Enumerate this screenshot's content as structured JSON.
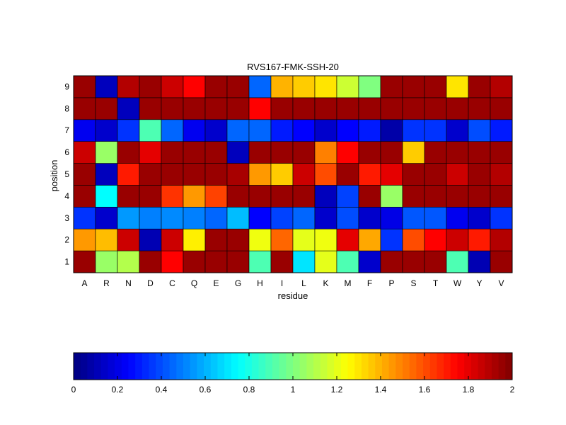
{
  "chart_data": [
    {
      "type": "heatmap",
      "title": "RVS167-FMK-SSH-20",
      "xlabel": "residue",
      "ylabel": "position",
      "x_categories": [
        "A",
        "R",
        "N",
        "D",
        "C",
        "Q",
        "E",
        "G",
        "H",
        "I",
        "L",
        "K",
        "M",
        "F",
        "P",
        "S",
        "T",
        "W",
        "Y",
        "V"
      ],
      "y_categories": [
        "1",
        "2",
        "3",
        "4",
        "5",
        "6",
        "7",
        "8",
        "9"
      ],
      "colormap": "jet",
      "clim": [
        0,
        2
      ],
      "values": [
        [
          1.95,
          1.05,
          1.1,
          1.95,
          1.75,
          1.95,
          1.95,
          1.95,
          0.9,
          1.95,
          0.7,
          1.2,
          0.9,
          0.15,
          1.95,
          1.95,
          1.95,
          0.9,
          0.1,
          1.95
        ],
        [
          1.45,
          1.38,
          1.85,
          0.1,
          1.85,
          1.28,
          1.95,
          1.95,
          1.22,
          1.55,
          1.2,
          1.22,
          1.8,
          1.42,
          0.35,
          1.6,
          1.75,
          1.85,
          1.7,
          1.9
        ],
        [
          0.35,
          0.15,
          0.55,
          0.5,
          0.52,
          0.5,
          0.45,
          0.62,
          0.25,
          0.38,
          0.45,
          0.15,
          0.4,
          0.15,
          0.2,
          0.42,
          0.42,
          0.22,
          0.15,
          0.35
        ],
        [
          1.95,
          0.75,
          1.95,
          1.95,
          1.65,
          1.45,
          1.62,
          1.95,
          1.95,
          1.95,
          1.95,
          0.12,
          0.38,
          1.95,
          1.05,
          1.95,
          1.95,
          1.95,
          1.95,
          1.95
        ],
        [
          1.95,
          0.12,
          1.7,
          1.95,
          1.95,
          1.95,
          1.95,
          1.92,
          1.45,
          1.35,
          1.85,
          1.6,
          1.95,
          1.7,
          1.8,
          1.95,
          1.95,
          1.85,
          1.95,
          1.9
        ],
        [
          1.85,
          1.05,
          1.95,
          1.8,
          1.95,
          1.95,
          1.95,
          0.12,
          1.95,
          1.95,
          1.95,
          1.5,
          1.75,
          1.95,
          1.95,
          1.35,
          1.95,
          1.95,
          1.95,
          1.95
        ],
        [
          0.22,
          0.15,
          0.35,
          0.9,
          0.45,
          0.22,
          0.15,
          0.45,
          0.45,
          0.3,
          0.25,
          0.15,
          0.25,
          0.3,
          0.08,
          0.35,
          0.35,
          0.15,
          0.4,
          0.3
        ],
        [
          1.95,
          1.95,
          0.12,
          1.95,
          1.95,
          1.95,
          1.95,
          1.95,
          1.75,
          1.95,
          1.95,
          1.95,
          1.95,
          1.95,
          1.95,
          1.95,
          1.95,
          1.95,
          1.95,
          1.95
        ],
        [
          1.95,
          0.12,
          1.9,
          1.95,
          1.85,
          1.75,
          1.95,
          1.95,
          0.45,
          1.4,
          1.35,
          1.3,
          1.15,
          1.0,
          1.95,
          1.95,
          1.95,
          1.3,
          1.95,
          1.9
        ]
      ],
      "colorbar": {
        "orientation": "horizontal",
        "ticks": [
          "0",
          "0.2",
          "0.4",
          "0.6",
          "0.8",
          "1",
          "1.2",
          "1.4",
          "1.6",
          "1.8",
          "2"
        ]
      },
      "grid": false,
      "legend": "none"
    }
  ]
}
